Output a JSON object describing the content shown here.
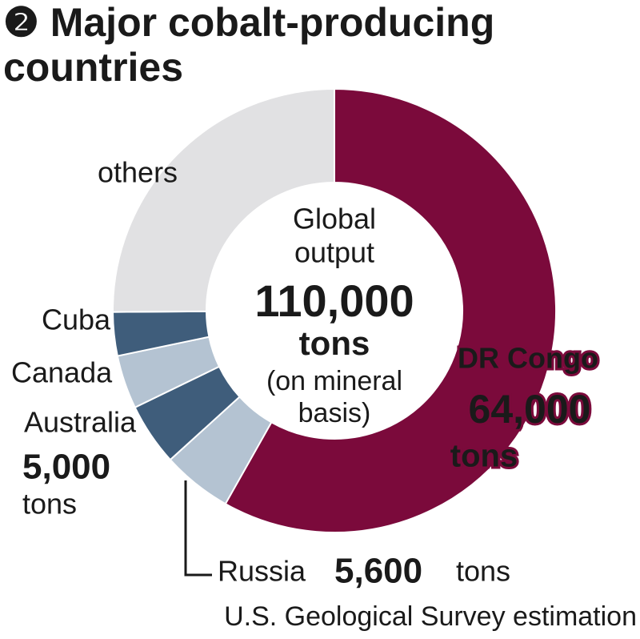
{
  "chart_data": {
    "type": "pie",
    "title": "❷ Major cobalt-producing countries",
    "categories": [
      "DR Congo",
      "Russia",
      "Australia",
      "Canada",
      "Cuba",
      "others"
    ],
    "values": [
      64000,
      5600,
      5000,
      4300,
      3500,
      27600
    ],
    "value_labels": [
      "64,000",
      "5,600",
      "5,000",
      null,
      null,
      null
    ],
    "unit": "tons",
    "colors": [
      "#7b0a3b",
      "#b4c3d2",
      "#3f5d7b",
      "#b4c3d2",
      "#3f5d7b",
      "#e1e1e3"
    ],
    "center_text": [
      "Global",
      "output"
    ],
    "total": {
      "value": 110000,
      "label": "110,000"
    },
    "total_note": [
      "(on mineral",
      "basis)"
    ],
    "source": "U.S. Geological Survey estimation"
  }
}
